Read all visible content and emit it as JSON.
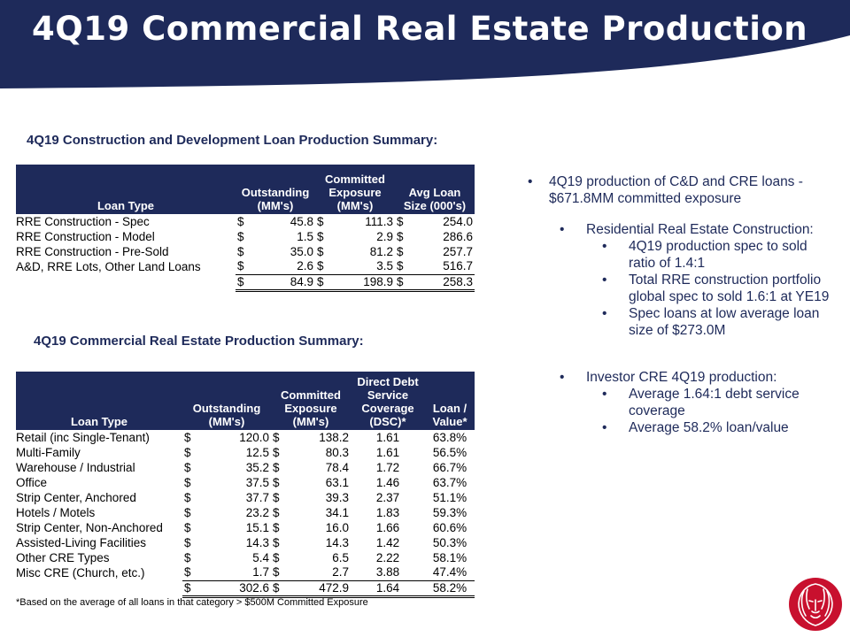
{
  "page": {
    "title": "4Q19 Commercial Real Estate Production",
    "colors": {
      "navy": "#1e2a5a",
      "logo_red": "#c8102e"
    }
  },
  "cd_table": {
    "heading": "4Q19 Construction and Development Loan Production Summary:",
    "headers": [
      "Loan Type",
      "Outstanding (MM's)",
      "Committed Exposure (MM's)",
      "Avg Loan Size (000's)"
    ],
    "rows": [
      {
        "type": "RRE Construction - Spec",
        "outstanding": "45.8",
        "committed": "111.3",
        "avg": "254.0"
      },
      {
        "type": "RRE Construction - Model",
        "outstanding": "1.5",
        "committed": "2.9",
        "avg": "286.6"
      },
      {
        "type": "RRE Construction - Pre-Sold",
        "outstanding": "35.0",
        "committed": "81.2",
        "avg": "257.7"
      },
      {
        "type": "A&D, RRE Lots, Other Land Loans",
        "outstanding": "2.6",
        "committed": "3.5",
        "avg": "516.7"
      }
    ],
    "total": {
      "outstanding": "84.9",
      "committed": "198.9",
      "avg": "258.3"
    },
    "currency": "$"
  },
  "cre_table": {
    "heading": "4Q19 Commercial Real Estate Production Summary:",
    "headers": [
      "Loan Type",
      "Outstanding (MM's)",
      "Committed Exposure (MM's)",
      "Direct Debt Service Coverage (DSC)*",
      "Loan / Value*"
    ],
    "rows": [
      {
        "type": "Retail (inc Single-Tenant)",
        "outstanding": "120.0",
        "committed": "138.2",
        "dsc": "1.61",
        "ltv": "63.8%"
      },
      {
        "type": "Multi-Family",
        "outstanding": "12.5",
        "committed": "80.3",
        "dsc": "1.61",
        "ltv": "56.5%"
      },
      {
        "type": "Warehouse / Industrial",
        "outstanding": "35.2",
        "committed": "78.4",
        "dsc": "1.72",
        "ltv": "66.7%"
      },
      {
        "type": "Office",
        "outstanding": "37.5",
        "committed": "63.1",
        "dsc": "1.46",
        "ltv": "63.7%"
      },
      {
        "type": "Strip Center, Anchored",
        "outstanding": "37.7",
        "committed": "39.3",
        "dsc": "2.37",
        "ltv": "51.1%"
      },
      {
        "type": "Hotels / Motels",
        "outstanding": "23.2",
        "committed": "34.1",
        "dsc": "1.83",
        "ltv": "59.3%"
      },
      {
        "type": "Strip Center, Non-Anchored",
        "outstanding": "15.1",
        "committed": "16.0",
        "dsc": "1.66",
        "ltv": "60.6%"
      },
      {
        "type": "Assisted-Living Facilities",
        "outstanding": "14.3",
        "committed": "14.3",
        "dsc": "1.42",
        "ltv": "50.3%"
      },
      {
        "type": "Other CRE Types",
        "outstanding": "5.4",
        "committed": "6.5",
        "dsc": "2.22",
        "ltv": "58.1%"
      },
      {
        "type": "Misc CRE (Church, etc.)",
        "outstanding": "1.7",
        "committed": "2.7",
        "dsc": "3.88",
        "ltv": "47.4%"
      }
    ],
    "total": {
      "outstanding": "302.6",
      "committed": "472.9",
      "dsc": "1.64",
      "ltv": "58.2%"
    },
    "currency": "$",
    "footnote": "*Based on the average of all loans in that category > $500M Committed Exposure"
  },
  "bullets": [
    {
      "level": 1,
      "text": "4Q19 production of C&D and CRE loans - $671.8MM committed exposure"
    },
    {
      "level": 2,
      "text": "Residential Real Estate Construction:"
    },
    {
      "level": 3,
      "text": "4Q19 production spec to sold ratio of 1.4:1"
    },
    {
      "level": 3,
      "text": "Total RRE construction portfolio global spec to sold 1.6:1 at YE19"
    },
    {
      "level": 3,
      "text": "Spec loans at low average loan size of $273.0M"
    },
    {
      "level": 2,
      "text": "Investor CRE 4Q19 production:"
    },
    {
      "level": 3,
      "text": "Average 1.64:1 debt service coverage"
    },
    {
      "level": 3,
      "text": "Average 58.2% loan/value"
    }
  ],
  "bullet_glyph": "•",
  "logo": {
    "icon": "lion-head-icon"
  }
}
